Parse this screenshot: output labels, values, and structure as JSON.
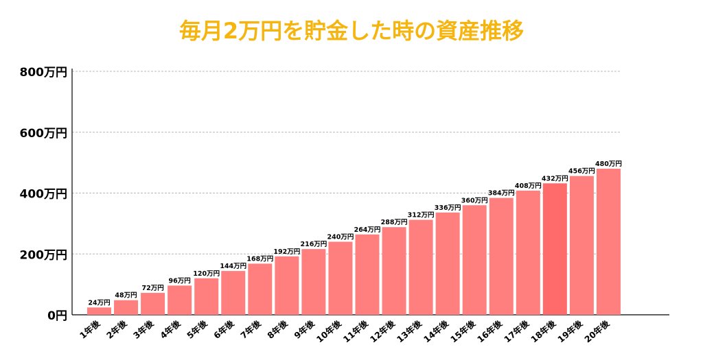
{
  "chart_data": {
    "type": "bar",
    "title": "毎月2万円を貯金した時の資産推移",
    "xlabel": "",
    "ylabel": "",
    "ylim": [
      0,
      800
    ],
    "yticks": [
      {
        "value": 0,
        "label": "0円"
      },
      {
        "value": 200,
        "label": "200万円"
      },
      {
        "value": 400,
        "label": "400万円"
      },
      {
        "value": 600,
        "label": "600万円"
      },
      {
        "value": 800,
        "label": "800万円"
      }
    ],
    "categories": [
      "1年後",
      "2年後",
      "3年後",
      "4年後",
      "5年後",
      "6年後",
      "7年後",
      "8年後",
      "9年後",
      "10年後",
      "11年後",
      "12年後",
      "13年後",
      "14年後",
      "15年後",
      "16年後",
      "17年後",
      "18年後",
      "19年後",
      "20年後"
    ],
    "values": [
      24,
      48,
      72,
      96,
      120,
      144,
      168,
      192,
      216,
      240,
      264,
      288,
      312,
      336,
      360,
      384,
      408,
      432,
      456,
      480
    ],
    "data_labels": [
      "24万円",
      "48万円",
      "72万円",
      "96万円",
      "120万円",
      "144万円",
      "168万円",
      "192万円",
      "216万円",
      "240万円",
      "264万円",
      "288万円",
      "312万円",
      "336万円",
      "360万円",
      "384万円",
      "408万円",
      "432万円",
      "456万円",
      "480万円"
    ],
    "grid": true,
    "legend": "none",
    "colors": {
      "bar": "#ff7f7f",
      "bar_highlight": "#ff6b6b",
      "title": "#f6b40e",
      "grid": "#b8b8b8",
      "axis": "#000000",
      "text": "#000000"
    },
    "highlight_index": 17
  }
}
